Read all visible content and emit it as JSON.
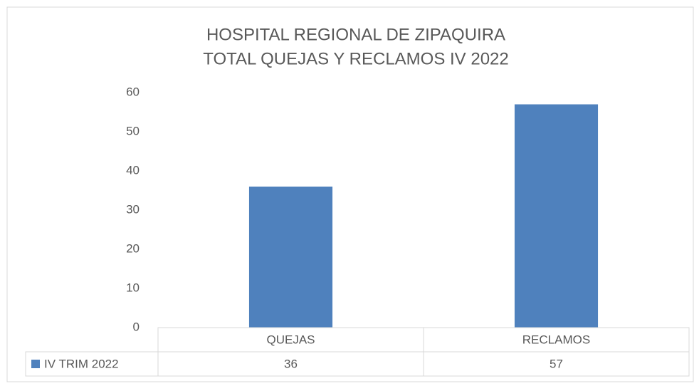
{
  "chart_data": {
    "type": "bar",
    "title": [
      "HOSPITAL REGIONAL DE ZIPAQUIRA",
      "TOTAL QUEJAS Y RECLAMOS IV 2022"
    ],
    "categories": [
      "QUEJAS",
      "RECLAMOS"
    ],
    "series": [
      {
        "name": "IV TRIM 2022",
        "color": "#4f81bd",
        "values": [
          36,
          57
        ]
      }
    ],
    "ylim": [
      0,
      60
    ],
    "yticks": [
      0,
      10,
      20,
      30,
      40,
      50,
      60
    ],
    "grid": false,
    "data_table": true
  }
}
